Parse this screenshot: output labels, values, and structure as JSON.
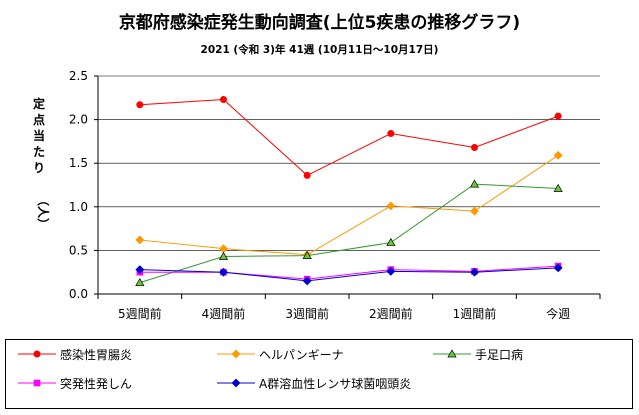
{
  "chart_data": {
    "type": "line",
    "title": "京都府感染症発生動向調査(上位5疾患の推移グラフ)",
    "subtitle": "2021 (令和 3)年  41週  (10月11日〜10月17日)",
    "ylabel_chars": [
      "定",
      "点",
      "当",
      "た",
      "り",
      "",
      "（人）"
    ],
    "categories": [
      "5週間前",
      "4週間前",
      "3週間前",
      "2週間前",
      "1週間前",
      "今週"
    ],
    "ylim": [
      0,
      2.5
    ],
    "yticks": [
      "0.0",
      "0.5",
      "1.0",
      "1.5",
      "2.0",
      "2.5"
    ],
    "grid": true,
    "legend_position": "bottom",
    "series": [
      {
        "name": "感染性胃腸炎",
        "color": "#ff0000",
        "marker": "circle",
        "values": [
          2.17,
          2.23,
          1.36,
          1.84,
          1.68,
          2.04
        ]
      },
      {
        "name": "ヘルパンギーナ",
        "color": "#ff9900",
        "marker": "diamond",
        "values": [
          0.62,
          0.52,
          0.45,
          1.01,
          0.95,
          1.59
        ]
      },
      {
        "name": "手足口病",
        "color": "#339933",
        "marker": "triangle",
        "values": [
          0.13,
          0.43,
          0.44,
          0.59,
          1.26,
          1.21
        ]
      },
      {
        "name": "突発性発しん",
        "color": "#ff00ff",
        "marker": "square",
        "values": [
          0.25,
          0.25,
          0.17,
          0.28,
          0.26,
          0.32
        ]
      },
      {
        "name": "A群溶血性レンサ球菌咽頭炎",
        "color": "#0000cc",
        "marker": "diamond",
        "values": [
          0.28,
          0.25,
          0.15,
          0.26,
          0.25,
          0.3
        ]
      }
    ]
  }
}
